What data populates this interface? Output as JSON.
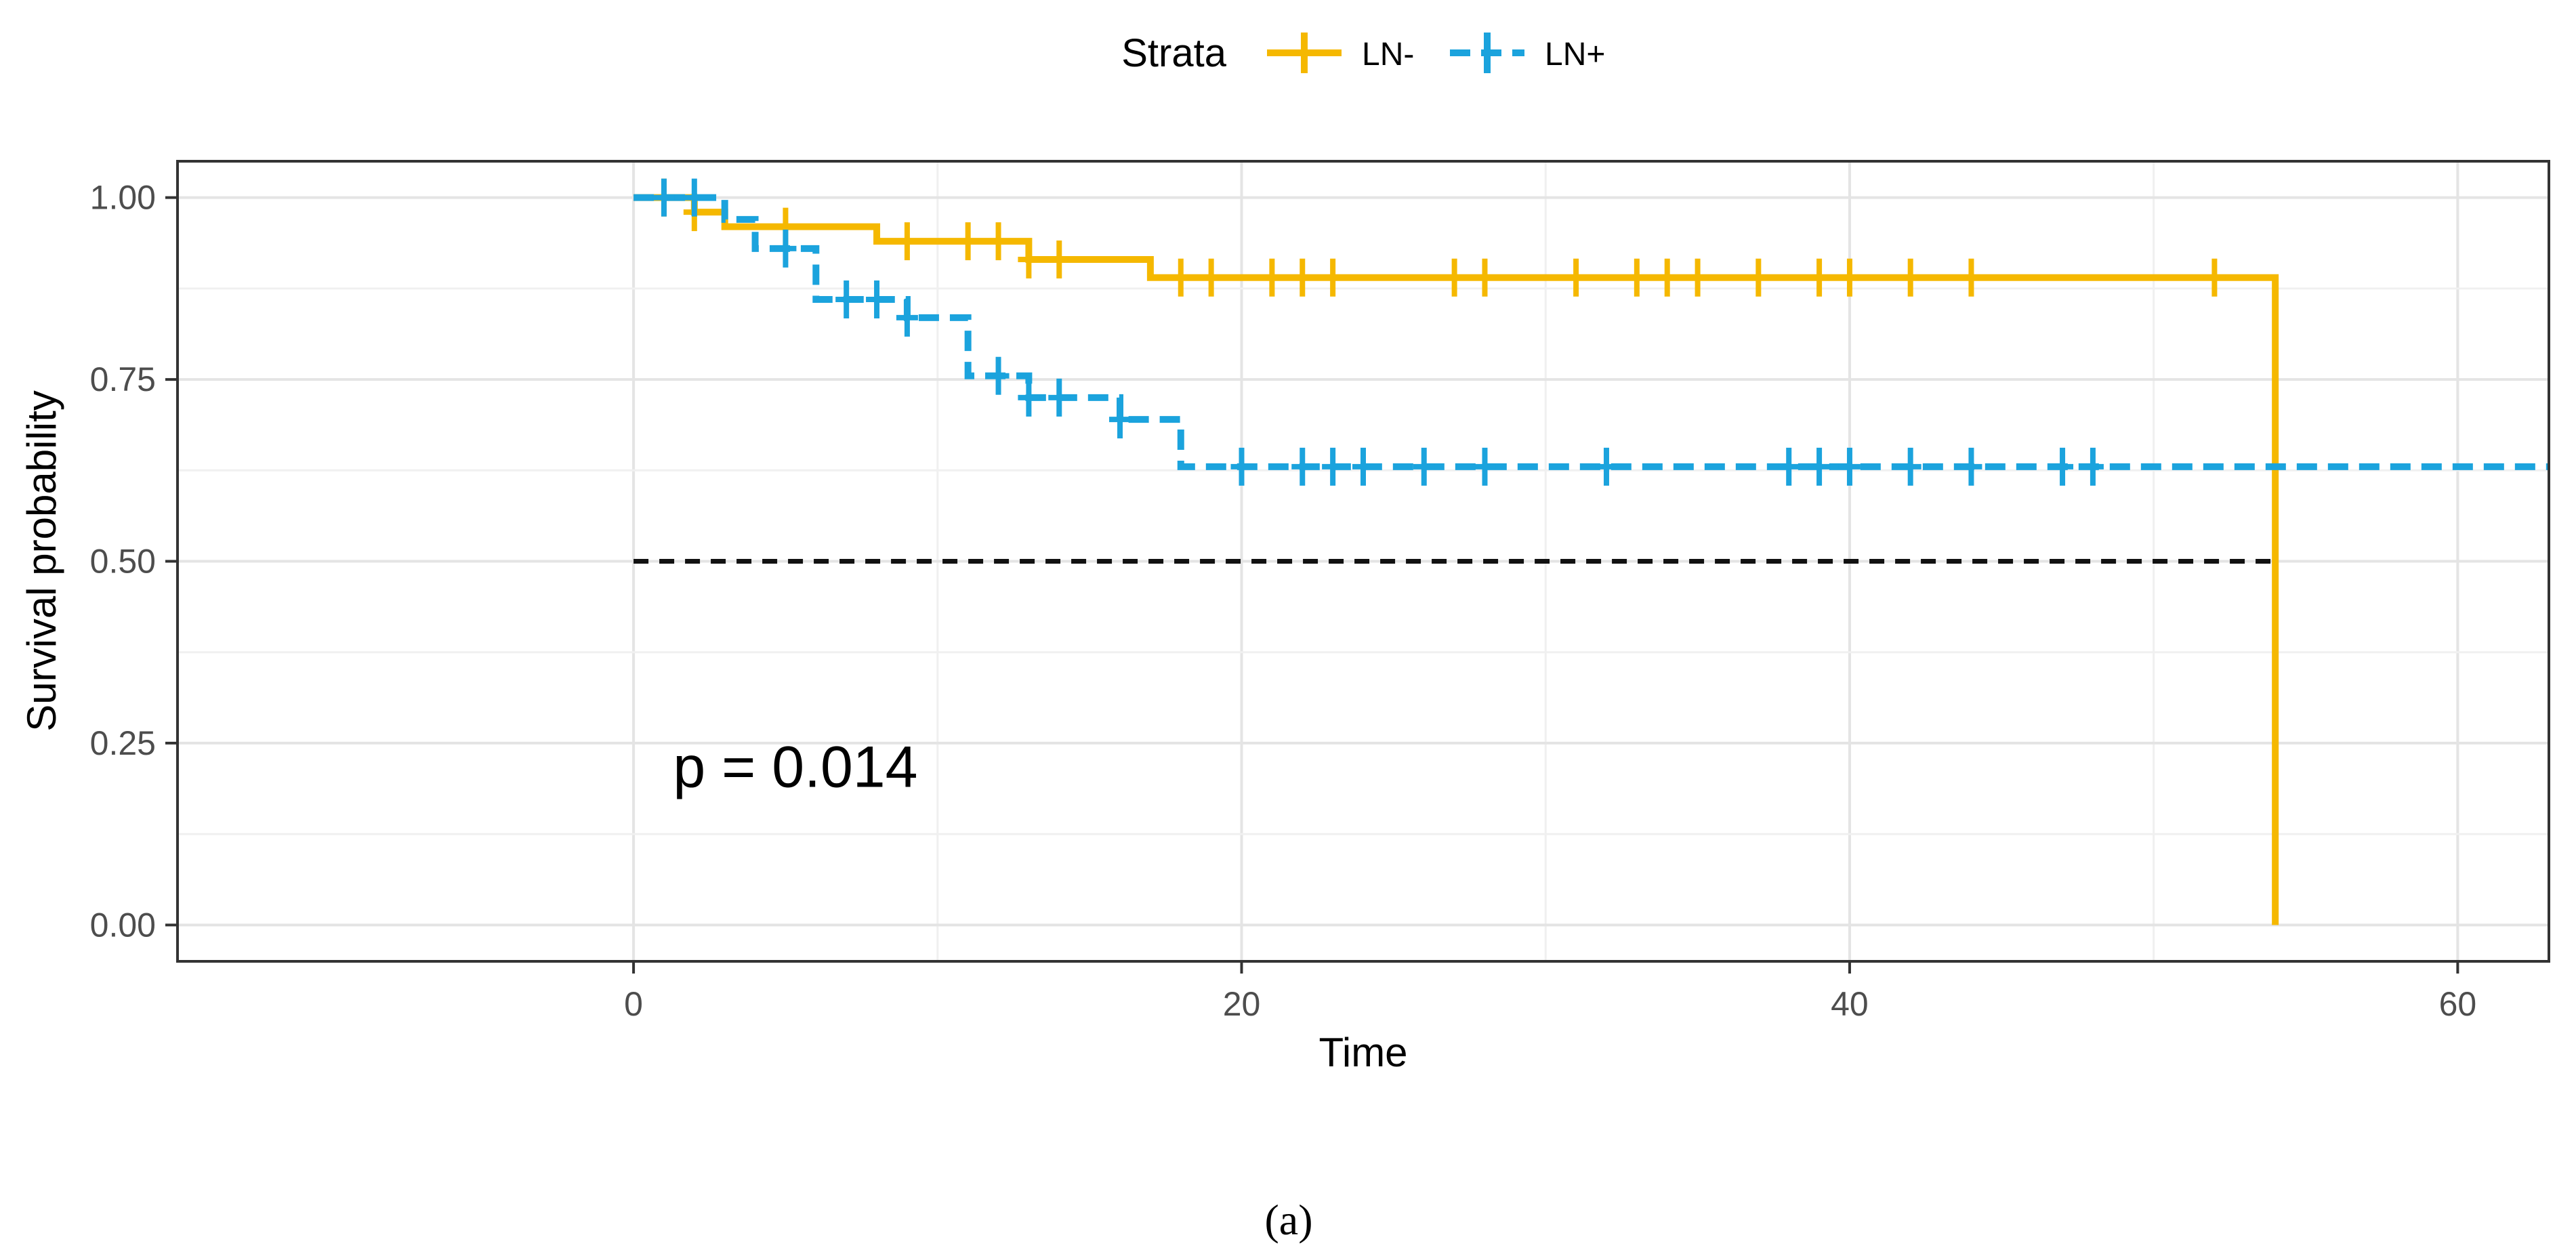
{
  "chart_data": {
    "type": "line",
    "subtype": "kaplan-meier",
    "title": "",
    "xlabel": "Time",
    "ylabel": "Survival probability",
    "xlim": [
      -15,
      63
    ],
    "ylim": [
      -0.05,
      1.05
    ],
    "xticks": [
      0,
      20,
      40,
      60
    ],
    "yticks": [
      0.0,
      0.25,
      0.5,
      0.75,
      1.0
    ],
    "xtick_labels": [
      "0",
      "20",
      "40",
      "60"
    ],
    "ytick_labels": [
      "0.00",
      "0.25",
      "0.50",
      "0.75",
      "1.00"
    ],
    "grid": true,
    "legend": {
      "title": "Strata",
      "position": "top",
      "entries": [
        "LN-",
        "LN+"
      ]
    },
    "annotation": "p = 0.014",
    "annotation_at": [
      1.3,
      0.19
    ],
    "caption": "(a)",
    "median_line": {
      "y": 0.5,
      "x_end": 54,
      "drop_to": 0
    },
    "series": [
      {
        "name": "LN-",
        "color": "#F5B800",
        "dash": "solid",
        "steps": [
          [
            0,
            1.0
          ],
          [
            2,
            0.98
          ],
          [
            3,
            0.96
          ],
          [
            8,
            0.94
          ],
          [
            13,
            0.915
          ],
          [
            17,
            0.89
          ],
          [
            54,
            0.0
          ]
        ],
        "end_x": 54,
        "censor_times": [
          1,
          2,
          5,
          9,
          11,
          12,
          13,
          14,
          18,
          19,
          21,
          22,
          23,
          27,
          28,
          31,
          33,
          34,
          35,
          37,
          39,
          40,
          42,
          44,
          52
        ]
      },
      {
        "name": "LN+",
        "color": "#1BA3DD",
        "dash": "dashed",
        "steps": [
          [
            0,
            1.0
          ],
          [
            3,
            0.97
          ],
          [
            4,
            0.93
          ],
          [
            6,
            0.86
          ],
          [
            9,
            0.835
          ],
          [
            11,
            0.755
          ],
          [
            13,
            0.725
          ],
          [
            16,
            0.695
          ],
          [
            18,
            0.63
          ]
        ],
        "end_x": 63,
        "censor_times": [
          1,
          2,
          5,
          7,
          8,
          9,
          12,
          13,
          14,
          16,
          20,
          22,
          23,
          24,
          26,
          28,
          32,
          38,
          39,
          40,
          42,
          44,
          47,
          48
        ]
      }
    ]
  }
}
